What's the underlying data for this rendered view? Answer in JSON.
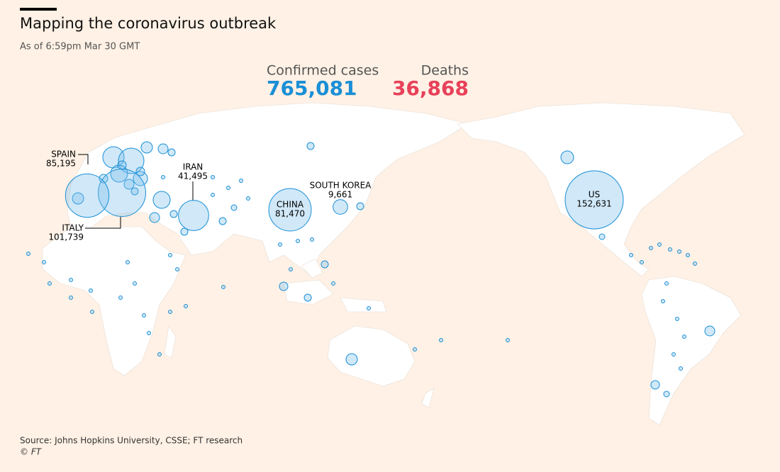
{
  "header": {
    "title": "Mapping the coronavirus outbreak",
    "subtitle": "As of 6:59pm Mar 30 GMT"
  },
  "totals": {
    "confirmed_label": "Confirmed cases",
    "confirmed_value": "765,081",
    "deaths_label": "Deaths",
    "deaths_value": "36,868"
  },
  "markers": [
    {
      "name": "US",
      "value": 152631,
      "value_label": "152,631"
    },
    {
      "name": "ITALY",
      "value": 101739,
      "value_label": "101,739"
    },
    {
      "name": "SPAIN",
      "value": 85195,
      "value_label": "85,195"
    },
    {
      "name": "CHINA",
      "value": 81470,
      "value_label": "81,470"
    },
    {
      "name": "IRAN",
      "value": 41495,
      "value_label": "41,495"
    },
    {
      "name": "SOUTH KOREA",
      "value": 9661,
      "value_label": "9,661"
    }
  ],
  "footer": {
    "source": "Source: Johns Hopkins University, CSSE; FT research",
    "credit": "© FT"
  }
}
